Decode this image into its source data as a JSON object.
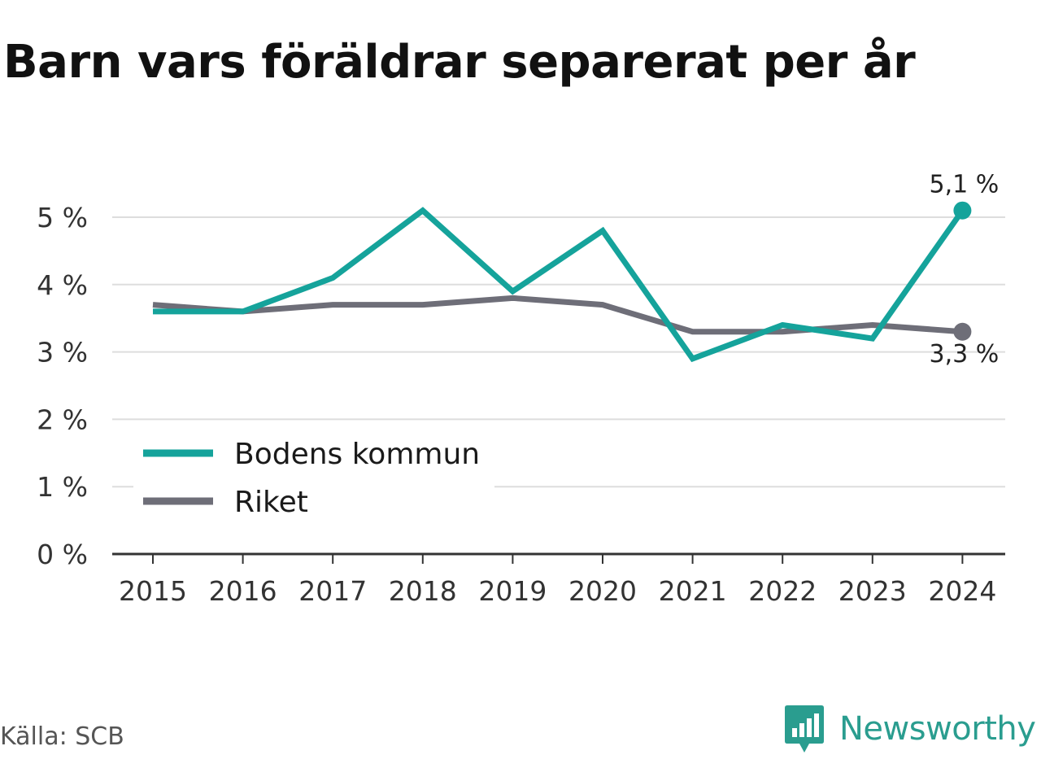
{
  "chart_data": {
    "type": "line",
    "title": "Barn vars föräldrar separerat per år",
    "categories": [
      "2015",
      "2016",
      "2017",
      "2018",
      "2019",
      "2020",
      "2021",
      "2022",
      "2023",
      "2024"
    ],
    "series": [
      {
        "name": "Bodens kommun",
        "color": "#15a39b",
        "values": [
          3.6,
          3.6,
          4.1,
          5.1,
          3.9,
          4.8,
          2.9,
          3.4,
          3.2,
          5.1
        ],
        "end_label": "5,1 %"
      },
      {
        "name": "Riket",
        "color": "#6e6e78",
        "values": [
          3.7,
          3.6,
          3.7,
          3.7,
          3.8,
          3.7,
          3.3,
          3.3,
          3.4,
          3.3
        ],
        "end_label": "3,3 %"
      }
    ],
    "yticks": [
      {
        "value": 0,
        "label": "0 %"
      },
      {
        "value": 1,
        "label": "1 %"
      },
      {
        "value": 2,
        "label": "2 %"
      },
      {
        "value": 3,
        "label": "3 %"
      },
      {
        "value": 4,
        "label": "4 %"
      },
      {
        "value": 5,
        "label": "5 %"
      }
    ],
    "ylim": [
      0,
      5.3
    ],
    "grid": true,
    "legend_position": "bottom-left"
  },
  "footer": {
    "source": "Källa: SCB",
    "brand": "Newsworthy",
    "brand_icon": "newsworthy-logo-icon"
  }
}
